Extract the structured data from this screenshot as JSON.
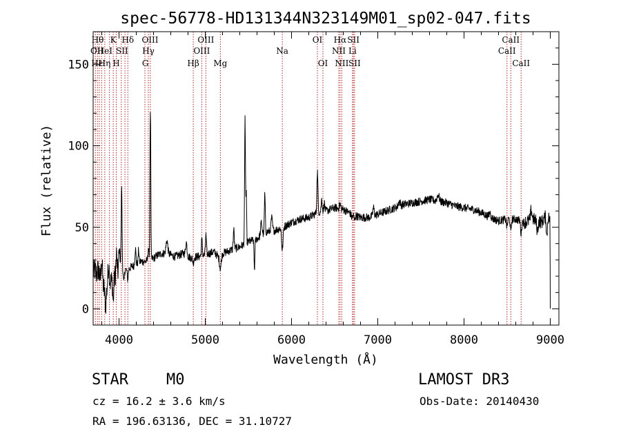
{
  "chart_data": {
    "type": "line",
    "title": "spec-56778-HD131344N323149M01_sp02-047.fits",
    "xlabel": "Wavelength (Å)",
    "ylabel": "Flux (relative)",
    "xlim": [
      3700,
      9100
    ],
    "ylim": [
      -10,
      170
    ],
    "xticks": [
      4000,
      5000,
      6000,
      7000,
      8000,
      9000
    ],
    "yticks": [
      0,
      50,
      100,
      150
    ],
    "xtick_labels": [
      "4000",
      "5000",
      "6000",
      "7000",
      "8000",
      "9000"
    ],
    "ytick_labels": [
      "0",
      "50",
      "100",
      "150"
    ],
    "line_color": "#000000",
    "line_marker_color": "#b22222",
    "continuum": [
      [
        3700,
        22
      ],
      [
        3760,
        18
      ],
      [
        3830,
        12
      ],
      [
        3900,
        16
      ],
      [
        3950,
        20
      ],
      [
        4000,
        22
      ],
      [
        4050,
        24
      ],
      [
        4100,
        24
      ],
      [
        4150,
        26
      ],
      [
        4200,
        27
      ],
      [
        4250,
        29
      ],
      [
        4300,
        29
      ],
      [
        4350,
        30
      ],
      [
        4400,
        31
      ],
      [
        4450,
        33
      ],
      [
        4500,
        34
      ],
      [
        4550,
        34
      ],
      [
        4600,
        33
      ],
      [
        4650,
        32
      ],
      [
        4700,
        33
      ],
      [
        4750,
        34
      ],
      [
        4800,
        32
      ],
      [
        4850,
        31
      ],
      [
        4900,
        32
      ],
      [
        4950,
        32
      ],
      [
        5000,
        33
      ],
      [
        5100,
        35
      ],
      [
        5150,
        32
      ],
      [
        5200,
        34
      ],
      [
        5250,
        35
      ],
      [
        5300,
        36
      ],
      [
        5400,
        38
      ],
      [
        5500,
        41
      ],
      [
        5600,
        43
      ],
      [
        5700,
        47
      ],
      [
        5800,
        48
      ],
      [
        5900,
        50
      ],
      [
        6000,
        53
      ],
      [
        6100,
        55
      ],
      [
        6200,
        56
      ],
      [
        6300,
        59
      ],
      [
        6400,
        60
      ],
      [
        6500,
        62
      ],
      [
        6600,
        61
      ],
      [
        6700,
        58
      ],
      [
        6800,
        56
      ],
      [
        6900,
        56
      ],
      [
        7000,
        58
      ],
      [
        7100,
        60
      ],
      [
        7200,
        62
      ],
      [
        7300,
        64
      ],
      [
        7400,
        65
      ],
      [
        7500,
        66
      ],
      [
        7600,
        67
      ],
      [
        7700,
        66
      ],
      [
        7800,
        65
      ],
      [
        7900,
        63
      ],
      [
        8000,
        62
      ],
      [
        8100,
        61
      ],
      [
        8200,
        59
      ],
      [
        8300,
        56
      ],
      [
        8400,
        54
      ],
      [
        8500,
        55
      ],
      [
        8600,
        55
      ],
      [
        8700,
        53
      ],
      [
        8800,
        55
      ],
      [
        8900,
        53
      ],
      [
        8960,
        58
      ],
      [
        8990,
        55
      ]
    ],
    "features": [
      [
        3722,
        3,
        10
      ],
      [
        3760,
        6,
        12
      ],
      [
        3800,
        15,
        8
      ],
      [
        3845,
        -10,
        8
      ],
      [
        3880,
        12,
        8
      ],
      [
        3933,
        -14,
        6
      ],
      [
        3970,
        12,
        6
      ],
      [
        4005,
        14,
        8
      ],
      [
        4030,
        53,
        5
      ],
      [
        4055,
        -8,
        6
      ],
      [
        4101,
        -6,
        6
      ],
      [
        4190,
        10,
        6
      ],
      [
        4227,
        8,
        5
      ],
      [
        4340,
        8,
        5
      ],
      [
        4361,
        76,
        4
      ],
      [
        4367,
        52,
        3
      ],
      [
        4555,
        8,
        10
      ],
      [
        4780,
        8,
        8
      ],
      [
        4861,
        -3,
        6
      ],
      [
        4960,
        10,
        6
      ],
      [
        5007,
        12,
        6
      ],
      [
        5175,
        -8,
        10
      ],
      [
        5330,
        12,
        6
      ],
      [
        5461,
        77,
        5
      ],
      [
        5475,
        30,
        4
      ],
      [
        5570,
        -18,
        5
      ],
      [
        5650,
        8,
        8
      ],
      [
        5690,
        24,
        5
      ],
      [
        5770,
        8,
        8
      ],
      [
        5893,
        -14,
        8
      ],
      [
        6300,
        25,
        6
      ],
      [
        6350,
        8,
        6
      ],
      [
        6380,
        5,
        6
      ],
      [
        6563,
        3,
        8
      ],
      [
        6700,
        -2,
        8
      ],
      [
        6730,
        -3,
        6
      ],
      [
        6950,
        5,
        8
      ],
      [
        7250,
        3,
        10
      ],
      [
        7700,
        4,
        12
      ],
      [
        8300,
        3,
        10
      ],
      [
        8498,
        -5,
        6
      ],
      [
        8542,
        -8,
        6
      ],
      [
        8662,
        -8,
        6
      ],
      [
        8780,
        6,
        8
      ],
      [
        8850,
        -6,
        8
      ],
      [
        8960,
        -14,
        6
      ]
    ],
    "noise_amp": 2.5,
    "line_markers": [
      3726,
      3750,
      3771,
      3798,
      3835,
      3889,
      3933,
      3968,
      4026,
      4069,
      4102,
      4300,
      4340,
      4363,
      4861,
      4959,
      5007,
      5175,
      5893,
      6300,
      6364,
      6548,
      6563,
      6583,
      6707,
      6717,
      6731,
      8498,
      8542,
      8662
    ],
    "annotations": [
      {
        "x": 3752,
        "row": 1,
        "text": "Hθ"
      },
      {
        "x": 3745,
        "row": 2,
        "text": "OII"
      },
      {
        "x": 3745,
        "row": 3,
        "text": "Hε"
      },
      {
        "x": 3835,
        "row": 2,
        "text": "HeI"
      },
      {
        "x": 3832,
        "row": 3,
        "text": "Hη"
      },
      {
        "x": 3933,
        "row": 1,
        "text": "K"
      },
      {
        "x": 3968,
        "row": 3,
        "text": "H"
      },
      {
        "x": 4035,
        "row": 2,
        "text": "SII"
      },
      {
        "x": 4102,
        "row": 1,
        "text": "Hδ"
      },
      {
        "x": 4360,
        "row": 1,
        "text": "OIII"
      },
      {
        "x": 4340,
        "row": 2,
        "text": "Hγ"
      },
      {
        "x": 4305,
        "row": 3,
        "text": "G"
      },
      {
        "x": 4861,
        "row": 3,
        "text": "Hβ"
      },
      {
        "x": 5007,
        "row": 1,
        "text": "OIII"
      },
      {
        "x": 4959,
        "row": 2,
        "text": "OIII"
      },
      {
        "x": 5175,
        "row": 3,
        "text": "Mg"
      },
      {
        "x": 5893,
        "row": 2,
        "text": "Na"
      },
      {
        "x": 6300,
        "row": 1,
        "text": "OI"
      },
      {
        "x": 6364,
        "row": 3,
        "text": "OI"
      },
      {
        "x": 6563,
        "row": 1,
        "text": "Hα"
      },
      {
        "x": 6548,
        "row": 2,
        "text": "NII"
      },
      {
        "x": 6583,
        "row": 3,
        "text": "NII"
      },
      {
        "x": 6717,
        "row": 1,
        "text": "SII"
      },
      {
        "x": 6707,
        "row": 2,
        "text": "Li"
      },
      {
        "x": 6731,
        "row": 3,
        "text": "SII"
      },
      {
        "x": 8542,
        "row": 1,
        "text": "CaII"
      },
      {
        "x": 8498,
        "row": 2,
        "text": "CaII"
      },
      {
        "x": 8662,
        "row": 3,
        "text": "CaII"
      }
    ]
  },
  "info": {
    "object_class": "STAR",
    "subclass": "M0",
    "survey": "LAMOST DR3",
    "redshift": "cz = 16.2 ± 3.6 km/s",
    "obs_date": "Obs-Date: 20140430",
    "coords": "RA = 196.63136, DEC =  31.10727"
  }
}
